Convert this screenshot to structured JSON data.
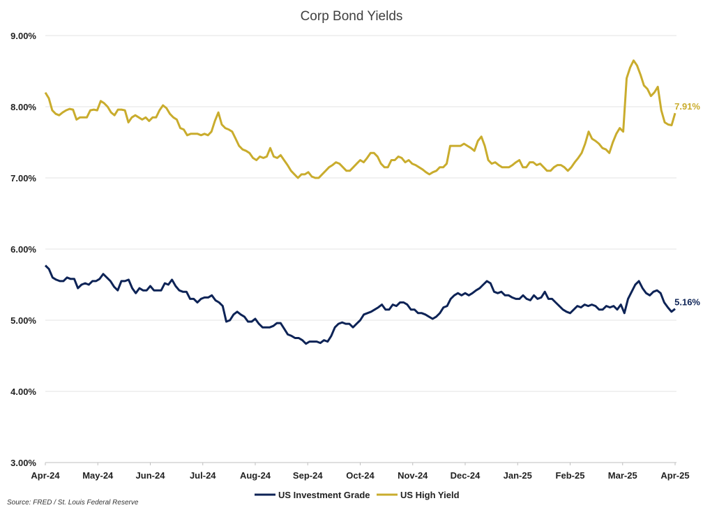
{
  "chart_data": {
    "type": "line",
    "title": "Corp Bond Yields",
    "source": "Source: FRED / St. Louis Federal Reserve",
    "ylim": [
      3.0,
      9.0
    ],
    "y_ticks": [
      "3.00%",
      "4.00%",
      "5.00%",
      "6.00%",
      "7.00%",
      "8.00%",
      "9.00%"
    ],
    "x_ticks": [
      "Apr-24",
      "May-24",
      "Jun-24",
      "Jul-24",
      "Aug-24",
      "Sep-24",
      "Oct-24",
      "Nov-24",
      "Dec-24",
      "Jan-25",
      "Feb-25",
      "Mar-25",
      "Apr-25"
    ],
    "grid": true,
    "legend_position": "bottom",
    "series": [
      {
        "name": "US Investment Grade",
        "color": "#0d2356",
        "end_label": "5.16%",
        "values": [
          5.77,
          5.72,
          5.6,
          5.57,
          5.55,
          5.55,
          5.6,
          5.58,
          5.58,
          5.45,
          5.5,
          5.52,
          5.5,
          5.55,
          5.55,
          5.58,
          5.65,
          5.6,
          5.55,
          5.47,
          5.42,
          5.55,
          5.55,
          5.57,
          5.45,
          5.38,
          5.45,
          5.42,
          5.42,
          5.48,
          5.42,
          5.42,
          5.42,
          5.52,
          5.5,
          5.57,
          5.48,
          5.42,
          5.4,
          5.4,
          5.3,
          5.3,
          5.25,
          5.3,
          5.32,
          5.32,
          5.35,
          5.28,
          5.25,
          5.2,
          4.98,
          5.0,
          5.08,
          5.12,
          5.08,
          5.05,
          4.98,
          4.98,
          5.02,
          4.95,
          4.9,
          4.9,
          4.9,
          4.92,
          4.96,
          4.96,
          4.88,
          4.8,
          4.78,
          4.75,
          4.75,
          4.72,
          4.67,
          4.7,
          4.7,
          4.7,
          4.68,
          4.72,
          4.7,
          4.78,
          4.9,
          4.95,
          4.97,
          4.95,
          4.95,
          4.9,
          4.95,
          5.0,
          5.08,
          5.1,
          5.12,
          5.15,
          5.18,
          5.22,
          5.15,
          5.15,
          5.22,
          5.2,
          5.25,
          5.25,
          5.22,
          5.15,
          5.15,
          5.1,
          5.1,
          5.08,
          5.05,
          5.02,
          5.05,
          5.1,
          5.18,
          5.2,
          5.3,
          5.35,
          5.38,
          5.35,
          5.38,
          5.35,
          5.38,
          5.42,
          5.45,
          5.5,
          5.55,
          5.52,
          5.4,
          5.38,
          5.4,
          5.35,
          5.35,
          5.32,
          5.3,
          5.3,
          5.35,
          5.3,
          5.28,
          5.35,
          5.3,
          5.32,
          5.4,
          5.3,
          5.3,
          5.25,
          5.2,
          5.15,
          5.12,
          5.1,
          5.15,
          5.2,
          5.18,
          5.22,
          5.2,
          5.22,
          5.2,
          5.15,
          5.15,
          5.2,
          5.18,
          5.2,
          5.15,
          5.22,
          5.1,
          5.3,
          5.4,
          5.5,
          5.55,
          5.45,
          5.38,
          5.35,
          5.4,
          5.42,
          5.38,
          5.25,
          5.18,
          5.12,
          5.16
        ]
      },
      {
        "name": "US High Yield",
        "color": "#c9ac2d",
        "end_label": "7.91%",
        "values": [
          8.2,
          8.12,
          7.95,
          7.9,
          7.88,
          7.92,
          7.95,
          7.97,
          7.96,
          7.82,
          7.85,
          7.85,
          7.85,
          7.95,
          7.96,
          7.95,
          8.08,
          8.05,
          8.0,
          7.92,
          7.88,
          7.96,
          7.96,
          7.95,
          7.78,
          7.85,
          7.88,
          7.85,
          7.82,
          7.85,
          7.8,
          7.85,
          7.85,
          7.95,
          8.02,
          7.98,
          7.9,
          7.85,
          7.82,
          7.7,
          7.68,
          7.6,
          7.62,
          7.62,
          7.62,
          7.6,
          7.62,
          7.6,
          7.65,
          7.8,
          7.92,
          7.75,
          7.7,
          7.68,
          7.65,
          7.55,
          7.45,
          7.4,
          7.38,
          7.35,
          7.28,
          7.25,
          7.3,
          7.28,
          7.3,
          7.42,
          7.3,
          7.28,
          7.32,
          7.25,
          7.18,
          7.1,
          7.05,
          7.0,
          7.05,
          7.05,
          7.08,
          7.02,
          7.0,
          7.0,
          7.05,
          7.1,
          7.15,
          7.18,
          7.22,
          7.2,
          7.15,
          7.1,
          7.1,
          7.15,
          7.2,
          7.25,
          7.22,
          7.28,
          7.35,
          7.35,
          7.3,
          7.2,
          7.15,
          7.15,
          7.25,
          7.25,
          7.3,
          7.28,
          7.22,
          7.25,
          7.2,
          7.18,
          7.15,
          7.12,
          7.08,
          7.05,
          7.08,
          7.1,
          7.15,
          7.15,
          7.2,
          7.45,
          7.45,
          7.45,
          7.45,
          7.48,
          7.45,
          7.42,
          7.38,
          7.52,
          7.58,
          7.45,
          7.25,
          7.2,
          7.22,
          7.18,
          7.15,
          7.15,
          7.15,
          7.18,
          7.22,
          7.25,
          7.15,
          7.15,
          7.22,
          7.22,
          7.18,
          7.2,
          7.15,
          7.1,
          7.1,
          7.15,
          7.18,
          7.18,
          7.15,
          7.1,
          7.15,
          7.22,
          7.28,
          7.35,
          7.48,
          7.65,
          7.55,
          7.52,
          7.48,
          7.42,
          7.4,
          7.35,
          7.5,
          7.62,
          7.7,
          7.65,
          8.4,
          8.55,
          8.65,
          8.58,
          8.45,
          8.3,
          8.25,
          8.15,
          8.2,
          8.28,
          7.95,
          7.78,
          7.75,
          7.74,
          7.91
        ]
      }
    ]
  }
}
